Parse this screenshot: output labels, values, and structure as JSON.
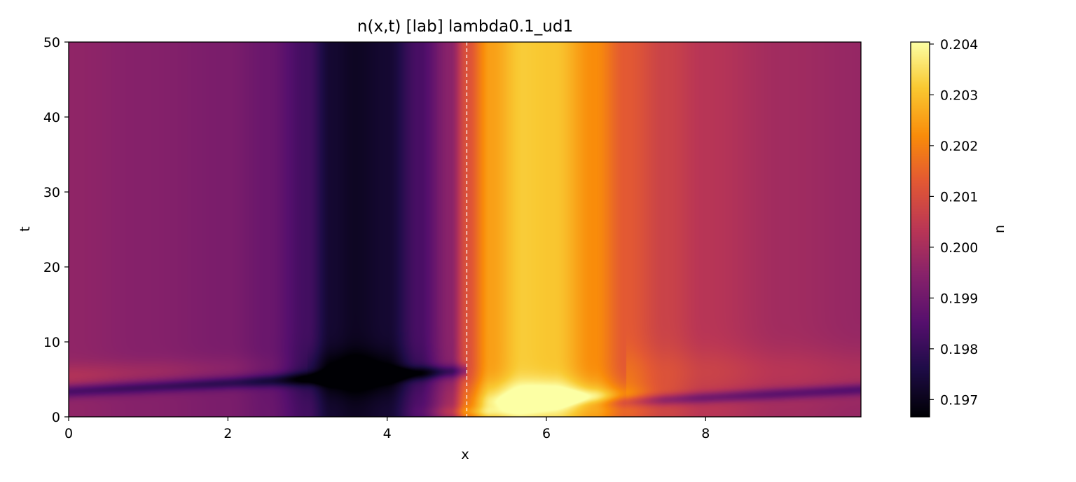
{
  "chart_data": {
    "type": "heatmap",
    "title": "n(x,t)  [lab]  lambda0.1_ud1",
    "xlabel": "x",
    "ylabel": "t",
    "colorbar_label": "n",
    "colormap": "inferno",
    "xlim": [
      0,
      9.95
    ],
    "ylim": [
      0,
      50
    ],
    "x_ticks": [
      0,
      2,
      4,
      6,
      8
    ],
    "x_tick_labels": [
      "0",
      "2",
      "4",
      "6",
      "8"
    ],
    "y_ticks": [
      0,
      10,
      20,
      30,
      40,
      50
    ],
    "y_tick_labels": [
      "0",
      "10",
      "20",
      "30",
      "40",
      "50"
    ],
    "color_range": [
      0.19666,
      0.20404
    ],
    "colorbar_ticks": [
      0.197,
      0.198,
      0.199,
      0.2,
      0.201,
      0.202,
      0.203,
      0.204
    ],
    "colorbar_tick_labels": [
      "0.197",
      "0.198",
      "0.199",
      "0.200",
      "0.201",
      "0.202",
      "0.203",
      "0.204"
    ],
    "reference_line": {
      "x": 5.0,
      "style": "dashed",
      "color": "#ffffff"
    },
    "field_description": {
      "steady_profile_x": [
        0,
        1,
        2,
        2.5,
        3,
        3.3,
        3.6,
        4.0,
        4.4,
        4.8,
        5.0,
        5.3,
        5.7,
        6.1,
        6.6,
        7.0,
        7.5,
        8,
        9,
        9.95
      ],
      "steady_profile_n": [
        0.1996,
        0.1994,
        0.1992,
        0.1989,
        0.1982,
        0.1973,
        0.1971,
        0.1973,
        0.1983,
        0.1995,
        0.2011,
        0.2025,
        0.2032,
        0.2031,
        0.2022,
        0.2013,
        0.2007,
        0.2003,
        0.1999,
        0.1997
      ]
    },
    "grid": false,
    "colorbar_position": "right"
  }
}
